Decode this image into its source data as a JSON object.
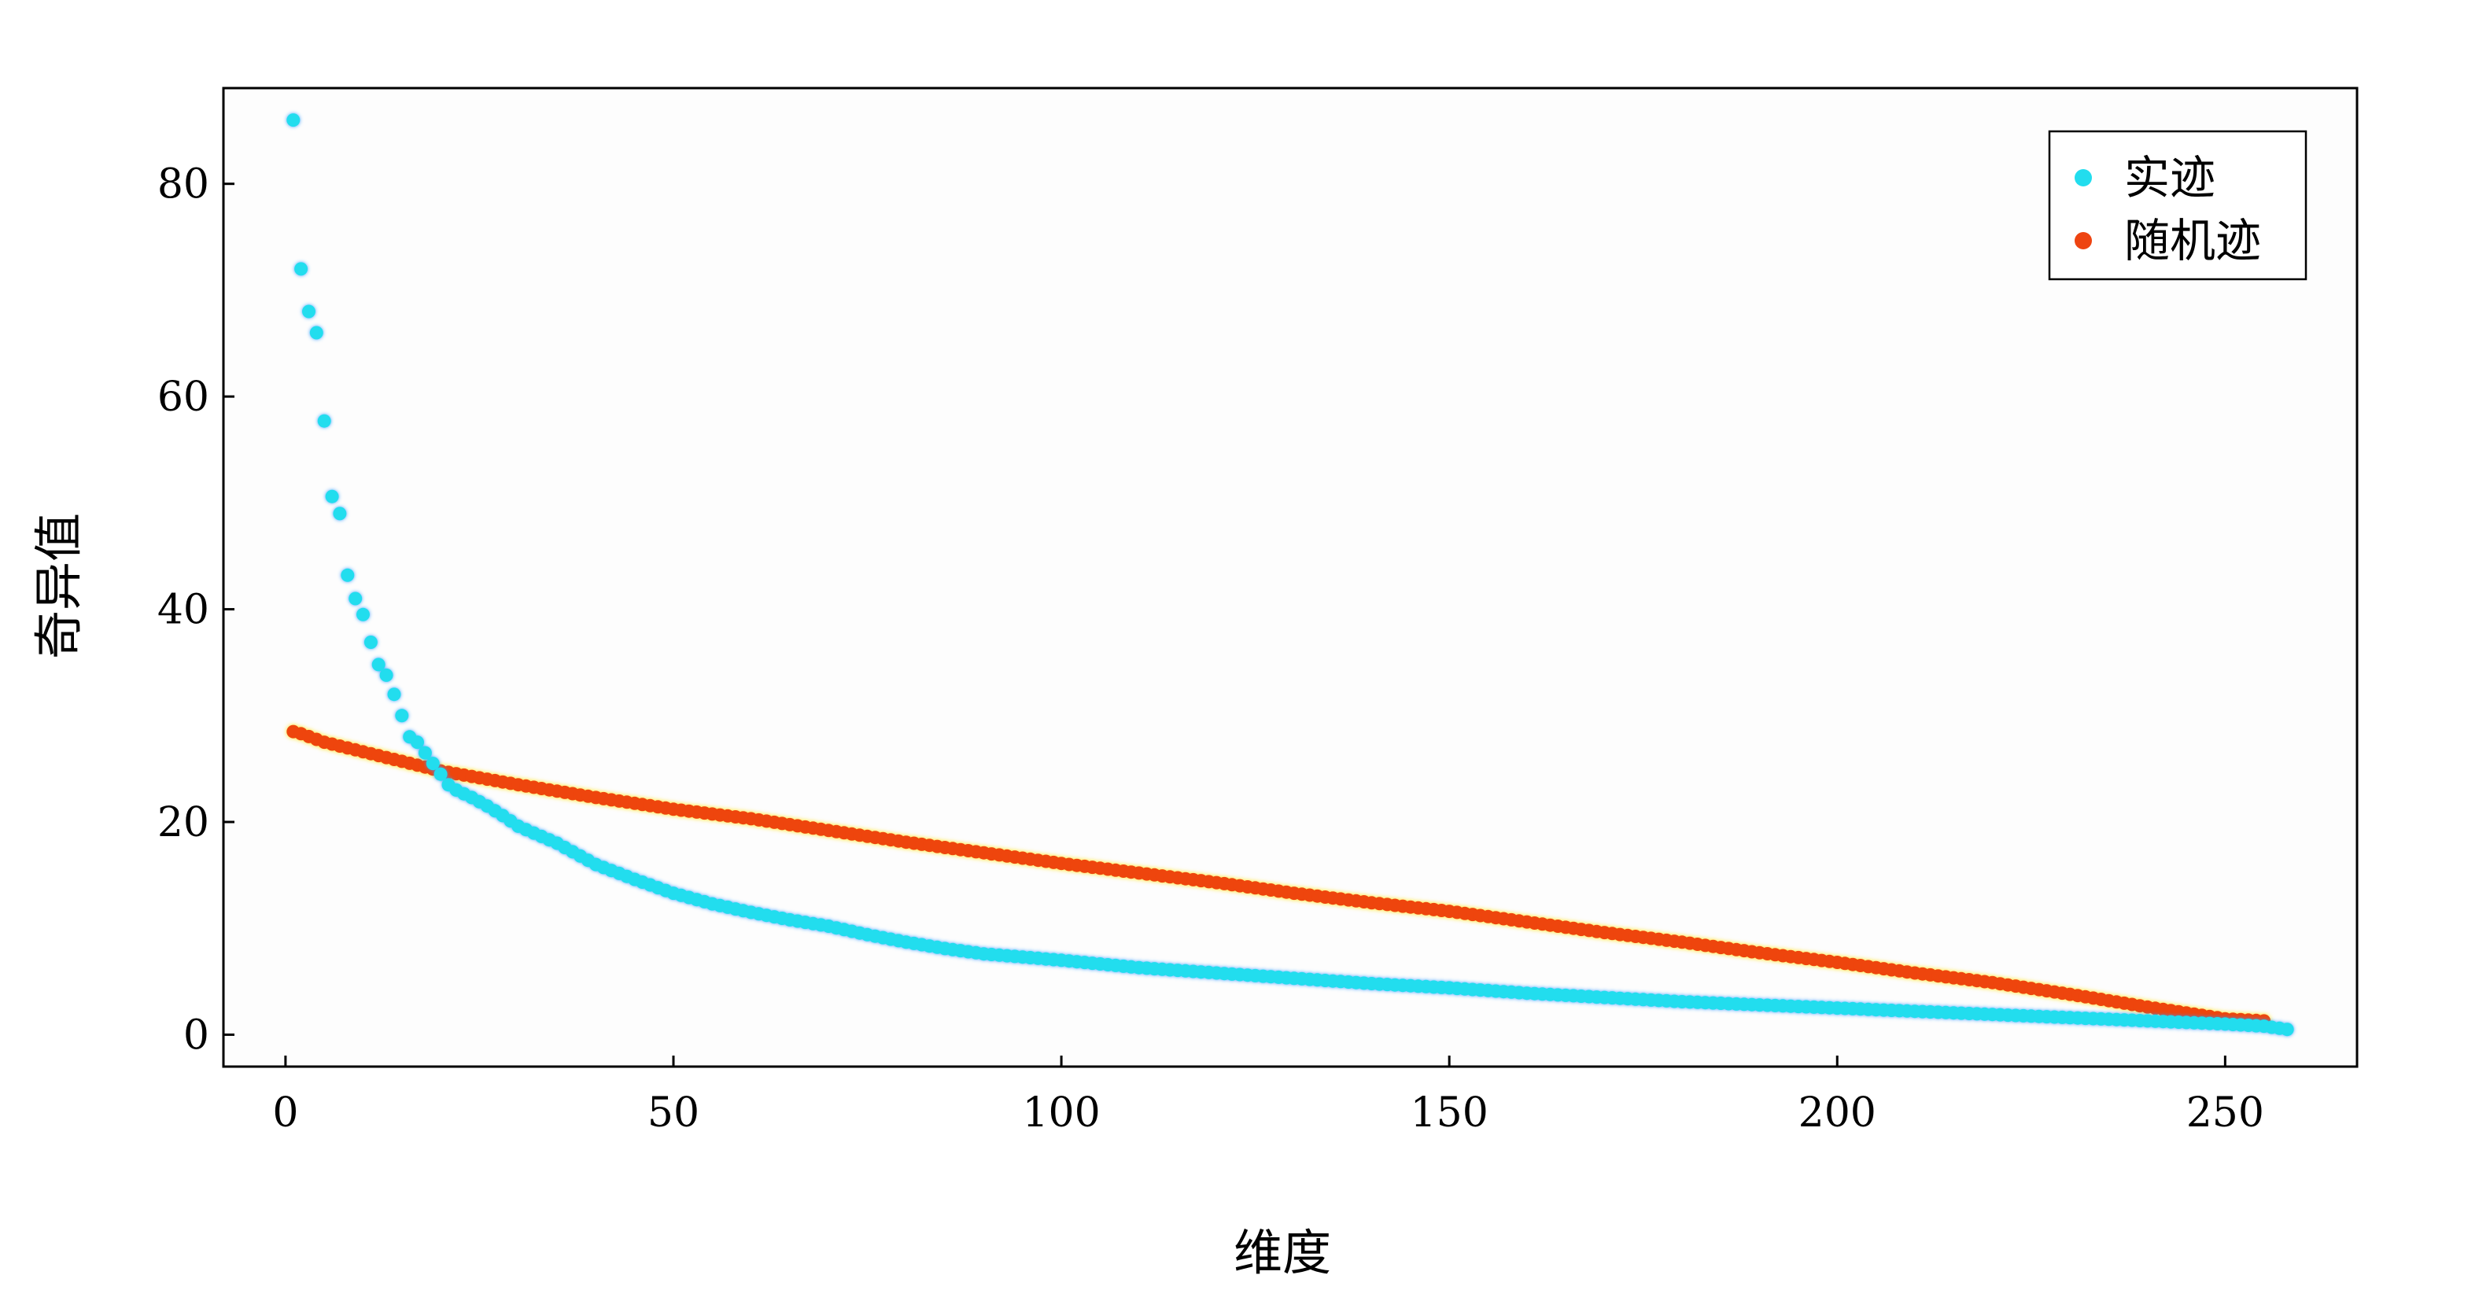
{
  "chart_data": {
    "type": "scatter",
    "xlabel": "维度",
    "ylabel": "奇异值",
    "xlim": [
      -8,
      267
    ],
    "ylim": [
      -3,
      89
    ],
    "xticks": [
      0,
      50,
      100,
      150,
      200,
      250
    ],
    "yticks": [
      0,
      20,
      40,
      60,
      80
    ],
    "legend_position": "top-right",
    "grid": false,
    "series": [
      {
        "name": "实迹",
        "color": "#22ddee",
        "n": 258,
        "points": [
          [
            1,
            86
          ],
          [
            2,
            72
          ],
          [
            3,
            68
          ],
          [
            4,
            66
          ],
          [
            5,
            57.7
          ],
          [
            6,
            50.6
          ],
          [
            7,
            49
          ],
          [
            8,
            43.2
          ],
          [
            9,
            41
          ],
          [
            10,
            39.5
          ],
          [
            11,
            36.9
          ],
          [
            12,
            34.8
          ],
          [
            13,
            33.8
          ],
          [
            14,
            32
          ],
          [
            15,
            30
          ],
          [
            16,
            28
          ],
          [
            17,
            27.5
          ],
          [
            18,
            26.5
          ],
          [
            19,
            25.5
          ],
          [
            20,
            24.5
          ],
          [
            21,
            23.5
          ],
          [
            22,
            23
          ],
          [
            24,
            22.3
          ],
          [
            26,
            21.5
          ],
          [
            28,
            20.6
          ],
          [
            30,
            19.6
          ],
          [
            35,
            18
          ],
          [
            40,
            16
          ],
          [
            45,
            14.6
          ],
          [
            50,
            13.3
          ],
          [
            55,
            12.3
          ],
          [
            60,
            11.5
          ],
          [
            65,
            10.8
          ],
          [
            70,
            10.2
          ],
          [
            75,
            9.4
          ],
          [
            80,
            8.7
          ],
          [
            85,
            8.1
          ],
          [
            90,
            7.6
          ],
          [
            100,
            7
          ],
          [
            110,
            6.3
          ],
          [
            120,
            5.8
          ],
          [
            130,
            5.3
          ],
          [
            140,
            4.8
          ],
          [
            150,
            4.4
          ],
          [
            160,
            3.9
          ],
          [
            170,
            3.5
          ],
          [
            180,
            3.1
          ],
          [
            190,
            2.8
          ],
          [
            200,
            2.5
          ],
          [
            210,
            2.2
          ],
          [
            220,
            1.9
          ],
          [
            230,
            1.6
          ],
          [
            240,
            1.3
          ],
          [
            250,
            1
          ],
          [
            255,
            0.8
          ],
          [
            258,
            0.5
          ]
        ]
      },
      {
        "name": "随机迹",
        "color": "#ee4411",
        "n": 255,
        "points": [
          [
            1,
            28.5
          ],
          [
            2,
            28.3
          ],
          [
            5,
            27.5
          ],
          [
            10,
            26.6
          ],
          [
            20,
            24.8
          ],
          [
            30,
            23.5
          ],
          [
            40,
            22.3
          ],
          [
            50,
            21.2
          ],
          [
            60,
            20.3
          ],
          [
            70,
            19.2
          ],
          [
            80,
            18.1
          ],
          [
            90,
            17.1
          ],
          [
            100,
            16.1
          ],
          [
            110,
            15.2
          ],
          [
            120,
            14.3
          ],
          [
            130,
            13.3
          ],
          [
            140,
            12.4
          ],
          [
            150,
            11.6
          ],
          [
            160,
            10.6
          ],
          [
            170,
            9.6
          ],
          [
            180,
            8.7
          ],
          [
            190,
            7.7
          ],
          [
            200,
            6.8
          ],
          [
            210,
            5.8
          ],
          [
            220,
            4.9
          ],
          [
            230,
            3.8
          ],
          [
            240,
            2.6
          ],
          [
            250,
            1.5
          ],
          [
            255,
            1.3
          ]
        ]
      }
    ]
  }
}
